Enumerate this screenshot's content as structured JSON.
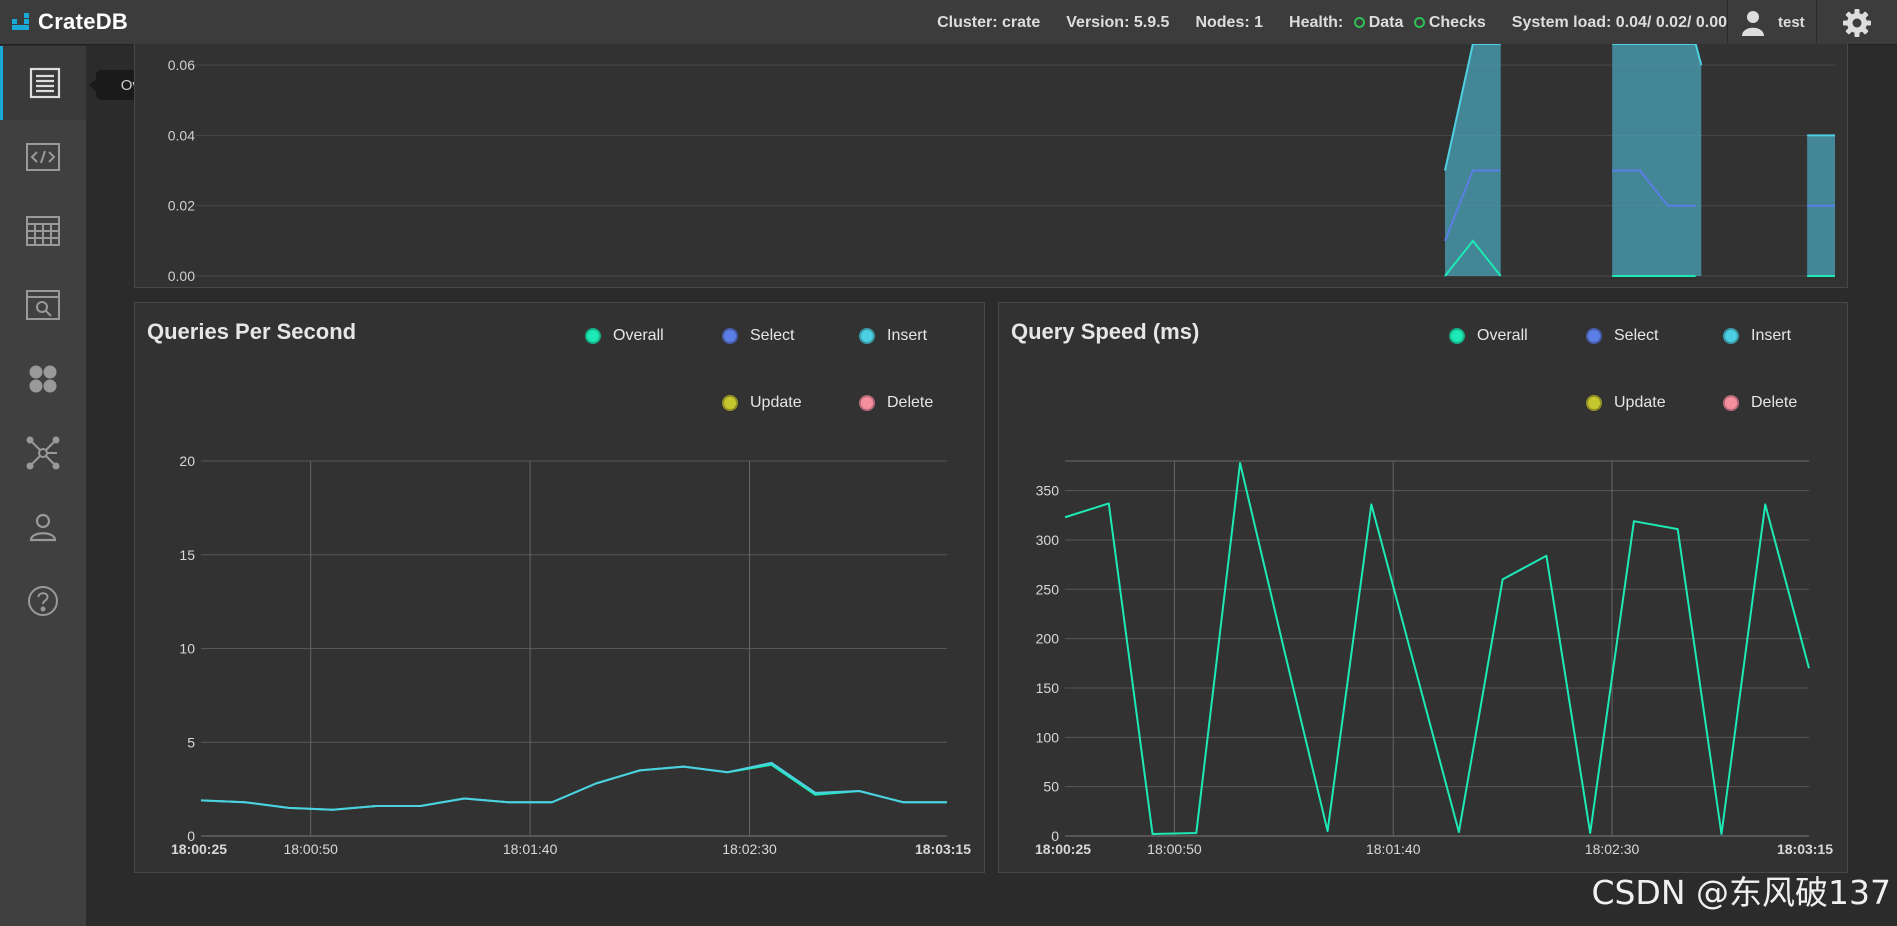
{
  "app": {
    "name": "CrateDB"
  },
  "topbar": {
    "cluster": "Cluster: crate",
    "version": "Version: 5.9.5",
    "nodes": "Nodes: 1",
    "health_label": "Health:",
    "health_data": "Data",
    "health_checks": "Checks",
    "system_load": "System load: 0.04/ 0.02/ 0.00",
    "user": "test"
  },
  "sidebar": {
    "tooltip": "Overview",
    "items": [
      {
        "icon": "overview-icon",
        "label": "Overview"
      },
      {
        "icon": "console-icon"
      },
      {
        "icon": "tables-icon"
      },
      {
        "icon": "views-icon"
      },
      {
        "icon": "shards-icon"
      },
      {
        "icon": "cluster-icon"
      },
      {
        "icon": "users-icon"
      },
      {
        "icon": "help-icon"
      }
    ]
  },
  "colors": {
    "overall": "#1de9b6",
    "select": "#5b7ee5",
    "insert": "#4dd0e1",
    "update": "#c6c62e",
    "delete": "#f48fa0",
    "accent": "#19a9d7"
  },
  "legend": {
    "overall": "Overall",
    "select": "Select",
    "insert": "Insert",
    "update": "Update",
    "delete": "Delete"
  },
  "watermark": "CSDN @东风破137",
  "chart_data": [
    {
      "type": "area",
      "title": "",
      "yticks": [
        "0.00",
        "0.02",
        "0.04",
        "0.06"
      ],
      "ylim": [
        0,
        0.066
      ],
      "series": [
        {
          "name": "Insert",
          "segments": [
            [
              [
                0,
                0.03
              ],
              [
                0.5,
                0.066
              ],
              [
                1,
                0.066
              ]
            ],
            [
              [
                3,
                0.066
              ],
              [
                4.5,
                0.066
              ],
              [
                4.6,
                0.06
              ]
            ],
            [
              [
                6.5,
                0.04
              ],
              [
                7,
                0.04
              ]
            ]
          ]
        },
        {
          "name": "Select",
          "segments": [
            [
              [
                0,
                0.01
              ],
              [
                0.5,
                0.03
              ],
              [
                1,
                0.03
              ]
            ],
            [
              [
                3,
                0.03
              ],
              [
                3.5,
                0.03
              ],
              [
                4,
                0.02
              ],
              [
                4.5,
                0.02
              ]
            ],
            [
              [
                6.5,
                0.02
              ],
              [
                7,
                0.02
              ]
            ]
          ]
        },
        {
          "name": "Overall",
          "segments": [
            [
              [
                0,
                0
              ],
              [
                0.5,
                0.01
              ],
              [
                1,
                0
              ]
            ],
            [
              [
                3,
                0
              ],
              [
                4.5,
                0
              ]
            ],
            [
              [
                6.5,
                0
              ],
              [
                7,
                0
              ]
            ]
          ]
        }
      ]
    },
    {
      "type": "line",
      "title": "Queries Per Second",
      "x_ticks": [
        "18:00:25",
        "18:00:50",
        "18:01:40",
        "18:02:30",
        "18:03:15"
      ],
      "xlim": [
        "18:00:25",
        "18:03:15"
      ],
      "ylim": [
        0,
        20
      ],
      "yticks": [
        0,
        5,
        10,
        15,
        20
      ],
      "series": [
        {
          "name": "Overall",
          "x": [
            "18:00:25",
            "18:00:35",
            "18:00:45",
            "18:00:55",
            "18:01:05",
            "18:01:15",
            "18:01:25",
            "18:01:35",
            "18:01:45",
            "18:01:55",
            "18:02:05",
            "18:02:15",
            "18:02:25",
            "18:02:35",
            "18:02:45",
            "18:02:55",
            "18:03:05",
            "18:03:15"
          ],
          "values": [
            1.9,
            1.8,
            1.5,
            1.4,
            1.6,
            1.6,
            2.0,
            1.8,
            1.8,
            2.8,
            3.5,
            3.7,
            3.4,
            3.8,
            2.2,
            2.4,
            1.8,
            1.8
          ]
        },
        {
          "name": "Insert",
          "x": [
            "18:00:25",
            "18:00:35",
            "18:00:45",
            "18:00:55",
            "18:01:05",
            "18:01:15",
            "18:01:25",
            "18:01:35",
            "18:01:45",
            "18:01:55",
            "18:02:05",
            "18:02:15",
            "18:02:25",
            "18:02:35",
            "18:02:45",
            "18:02:55",
            "18:03:05",
            "18:03:15"
          ],
          "values": [
            1.9,
            1.8,
            1.5,
            1.4,
            1.6,
            1.6,
            2.0,
            1.8,
            1.8,
            2.8,
            3.5,
            3.7,
            3.4,
            3.9,
            2.3,
            2.4,
            1.8,
            1.8
          ]
        }
      ]
    },
    {
      "type": "line",
      "title": "Query Speed (ms)",
      "x_ticks": [
        "18:00:25",
        "18:00:50",
        "18:01:40",
        "18:02:30",
        "18:03:15"
      ],
      "xlim": [
        "18:00:25",
        "18:03:15"
      ],
      "ylim": [
        0,
        380
      ],
      "yticks": [
        0,
        50,
        100,
        150,
        200,
        250,
        300,
        350
      ],
      "series": [
        {
          "name": "Overall",
          "x": [
            "18:00:25",
            "18:00:35",
            "18:00:45",
            "18:00:55",
            "18:01:05",
            "18:01:15",
            "18:01:25",
            "18:01:35",
            "18:01:45",
            "18:01:55",
            "18:02:05",
            "18:02:15",
            "18:02:25",
            "18:02:35",
            "18:02:45",
            "18:02:55",
            "18:03:05",
            "18:03:15"
          ],
          "values": [
            323,
            337,
            2,
            3,
            378,
            190,
            5,
            336,
            170,
            4,
            260,
            284,
            3,
            319,
            311,
            2,
            336,
            170
          ]
        }
      ]
    }
  ]
}
